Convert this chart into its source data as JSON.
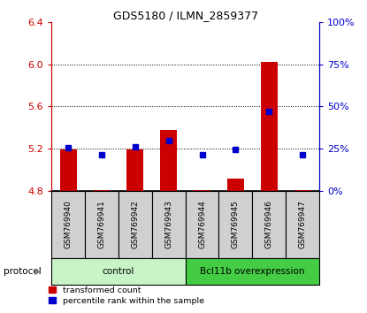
{
  "title": "GDS5180 / ILMN_2859377",
  "samples": [
    "GSM769940",
    "GSM769941",
    "GSM769942",
    "GSM769943",
    "GSM769944",
    "GSM769945",
    "GSM769946",
    "GSM769947"
  ],
  "red_bar_bottom": 4.8,
  "red_bar_tops": [
    5.19,
    4.81,
    5.19,
    5.38,
    4.81,
    4.92,
    6.02,
    4.81
  ],
  "blue_values": [
    5.21,
    5.14,
    5.22,
    5.28,
    5.14,
    5.19,
    5.55,
    5.14
  ],
  "ylim": [
    4.8,
    6.4
  ],
  "y_ticks_left": [
    4.8,
    5.2,
    5.6,
    6.0,
    6.4
  ],
  "y_ticks_right_pct": [
    0,
    25,
    50,
    75,
    100
  ],
  "groups": [
    {
      "label": "control",
      "start": 0,
      "end": 4,
      "color": "#c8f5c8"
    },
    {
      "label": "Bcl11b overexpression",
      "start": 4,
      "end": 8,
      "color": "#44cc44"
    }
  ],
  "protocol_label": "protocol",
  "red_color": "#cc0000",
  "blue_color": "#0000cc",
  "bar_width": 0.5,
  "blue_marker_size": 5,
  "legend_items": [
    {
      "color": "#cc0000",
      "label": "transformed count"
    },
    {
      "color": "#0000cc",
      "label": "percentile rank within the sample"
    }
  ],
  "dotted_lines": [
    5.2,
    5.6,
    6.0
  ],
  "sample_box_color": "#d0d0d0",
  "fig_width": 4.15,
  "fig_height": 3.54,
  "dpi": 100
}
